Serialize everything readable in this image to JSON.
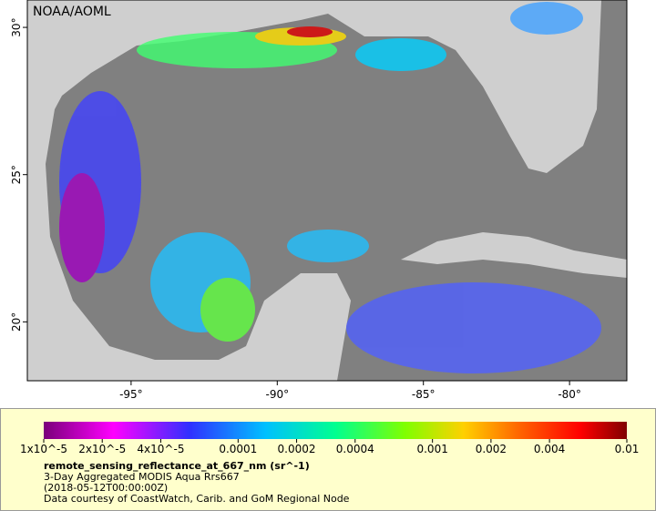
{
  "map": {
    "title": "NOAA/AOML",
    "xlim": [
      -98.55,
      -78.04
    ],
    "ylim": [
      18.0,
      30.93
    ],
    "xticks": [
      {
        "value": -95,
        "label": "-95°"
      },
      {
        "value": -90,
        "label": "-90°"
      },
      {
        "value": -85,
        "label": "-85°"
      },
      {
        "value": -80,
        "label": "-80°"
      }
    ],
    "yticks": [
      {
        "value": 20,
        "label": "20°"
      },
      {
        "value": 25,
        "label": "25°"
      },
      {
        "value": 30,
        "label": "30°"
      }
    ]
  },
  "colorbar": {
    "lim": [
      1e-05,
      0.01
    ],
    "log_scale": true,
    "ticks": [
      {
        "value": 1e-05,
        "label": "1x10^-5"
      },
      {
        "value": 2e-05,
        "label": "2x10^-5"
      },
      {
        "value": 4e-05,
        "label": "4x10^-5"
      },
      0.0001,
      0.0002,
      0.0004,
      0.001,
      0.002,
      0.004,
      0.01
    ]
  },
  "legend": {
    "variable": "remote_sensing_reflectance_at_667_nm (sr^-1)",
    "description": "3-Day Aggregated MODIS Aqua Rrs667",
    "time": "(2018-05-12T00:00:00Z)",
    "credit": "Data courtesy of CoastWatch, Carib. and GoM Regional Node"
  }
}
